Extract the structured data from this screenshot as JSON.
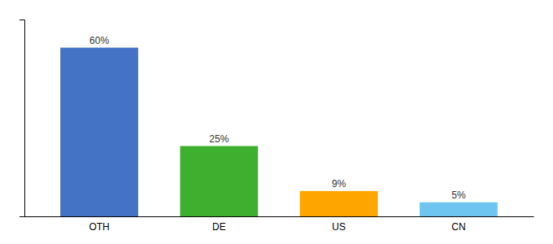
{
  "chart_data": {
    "type": "bar",
    "categories": [
      "OTH",
      "DE",
      "US",
      "CN"
    ],
    "values": [
      60,
      25,
      9,
      5
    ],
    "value_labels": [
      "60%",
      "25%",
      "9%",
      "5%"
    ],
    "data_labels": true,
    "colors": [
      "#4472C4",
      "#3EAF2E",
      "#FFA500",
      "#6EC6F0"
    ],
    "ylim": [
      0,
      70
    ],
    "grid": false,
    "tick_labels": "x"
  }
}
